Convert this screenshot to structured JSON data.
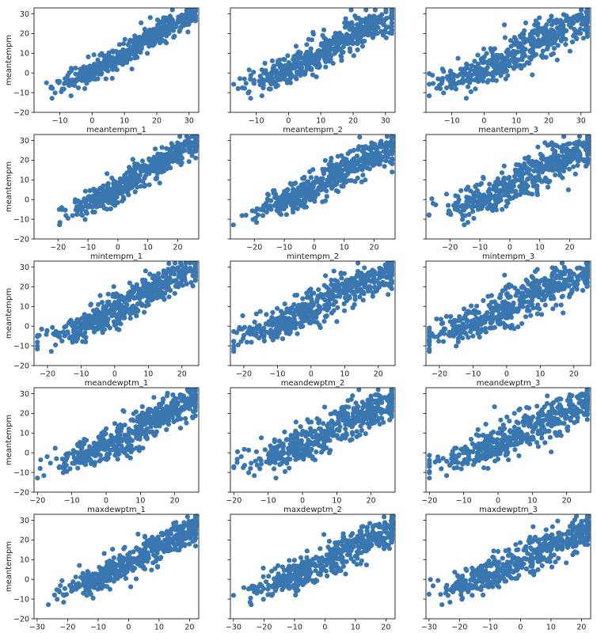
{
  "chart_data": {
    "type": "scatter",
    "ylabel": "meantempm",
    "ylim": [
      -20,
      33
    ],
    "yticks": [
      -20,
      -10,
      0,
      10,
      20,
      30
    ],
    "marker_color": "#3a76b0",
    "grid": false,
    "rows": [
      {
        "xlim": [
          -18,
          33
        ],
        "xticks": [
          -10,
          0,
          10,
          20,
          30
        ],
        "panels": [
          {
            "xlabel": "meantempm_1",
            "slope": 1.0,
            "intercept": 0,
            "noise": 3.2,
            "lag": 1
          },
          {
            "xlabel": "meantempm_2",
            "slope": 0.93,
            "intercept": 0.8,
            "noise": 5.0,
            "lag": 2
          },
          {
            "xlabel": "meantempm_3",
            "slope": 0.9,
            "intercept": 1.2,
            "noise": 6.0,
            "lag": 3
          }
        ]
      },
      {
        "xlim": [
          -28,
          27
        ],
        "xticks": [
          -20,
          -10,
          0,
          10,
          20
        ],
        "panels": [
          {
            "xlabel": "mintempm_1",
            "slope": 0.94,
            "intercept": 5.5,
            "noise": 3.6,
            "lag": 1
          },
          {
            "xlabel": "mintempm_2",
            "slope": 0.87,
            "intercept": 6.0,
            "noise": 5.2,
            "lag": 2
          },
          {
            "xlabel": "mintempm_3",
            "slope": 0.84,
            "intercept": 6.3,
            "noise": 6.0,
            "lag": 3
          }
        ]
      },
      {
        "xlim": [
          -24,
          25
        ],
        "xticks": [
          -20,
          -10,
          0,
          10,
          20
        ],
        "panels": [
          {
            "xlabel": "meandewptm_1",
            "slope": 0.96,
            "intercept": 8.0,
            "noise": 4.6,
            "lag": 1
          },
          {
            "xlabel": "meandewptm_2",
            "slope": 0.9,
            "intercept": 8.5,
            "noise": 5.6,
            "lag": 2
          },
          {
            "xlabel": "meandewptm_3",
            "slope": 0.88,
            "intercept": 8.7,
            "noise": 6.3,
            "lag": 3
          }
        ]
      },
      {
        "xlim": [
          -21,
          27
        ],
        "xticks": [
          -20,
          -10,
          0,
          10,
          20
        ],
        "panels": [
          {
            "xlabel": "maxdewptm_1",
            "slope": 0.98,
            "intercept": 3.5,
            "noise": 4.6,
            "lag": 1
          },
          {
            "xlabel": "maxdewptm_2",
            "slope": 0.93,
            "intercept": 4.0,
            "noise": 5.6,
            "lag": 2
          },
          {
            "xlabel": "maxdewptm_3",
            "slope": 0.9,
            "intercept": 4.3,
            "noise": 6.3,
            "lag": 3
          }
        ]
      },
      {
        "xlim": [
          -31,
          23
        ],
        "xticks": [
          -30,
          -20,
          -10,
          0,
          10,
          20
        ],
        "panels": [
          {
            "xlabel": "",
            "slope": 0.85,
            "intercept": 8.5,
            "noise": 4.3,
            "lag": 1
          },
          {
            "xlabel": "",
            "slope": 0.8,
            "intercept": 9.0,
            "noise": 5.4,
            "lag": 2
          },
          {
            "xlabel": "",
            "slope": 0.78,
            "intercept": 9.2,
            "noise": 6.0,
            "lag": 3
          }
        ]
      }
    ]
  }
}
